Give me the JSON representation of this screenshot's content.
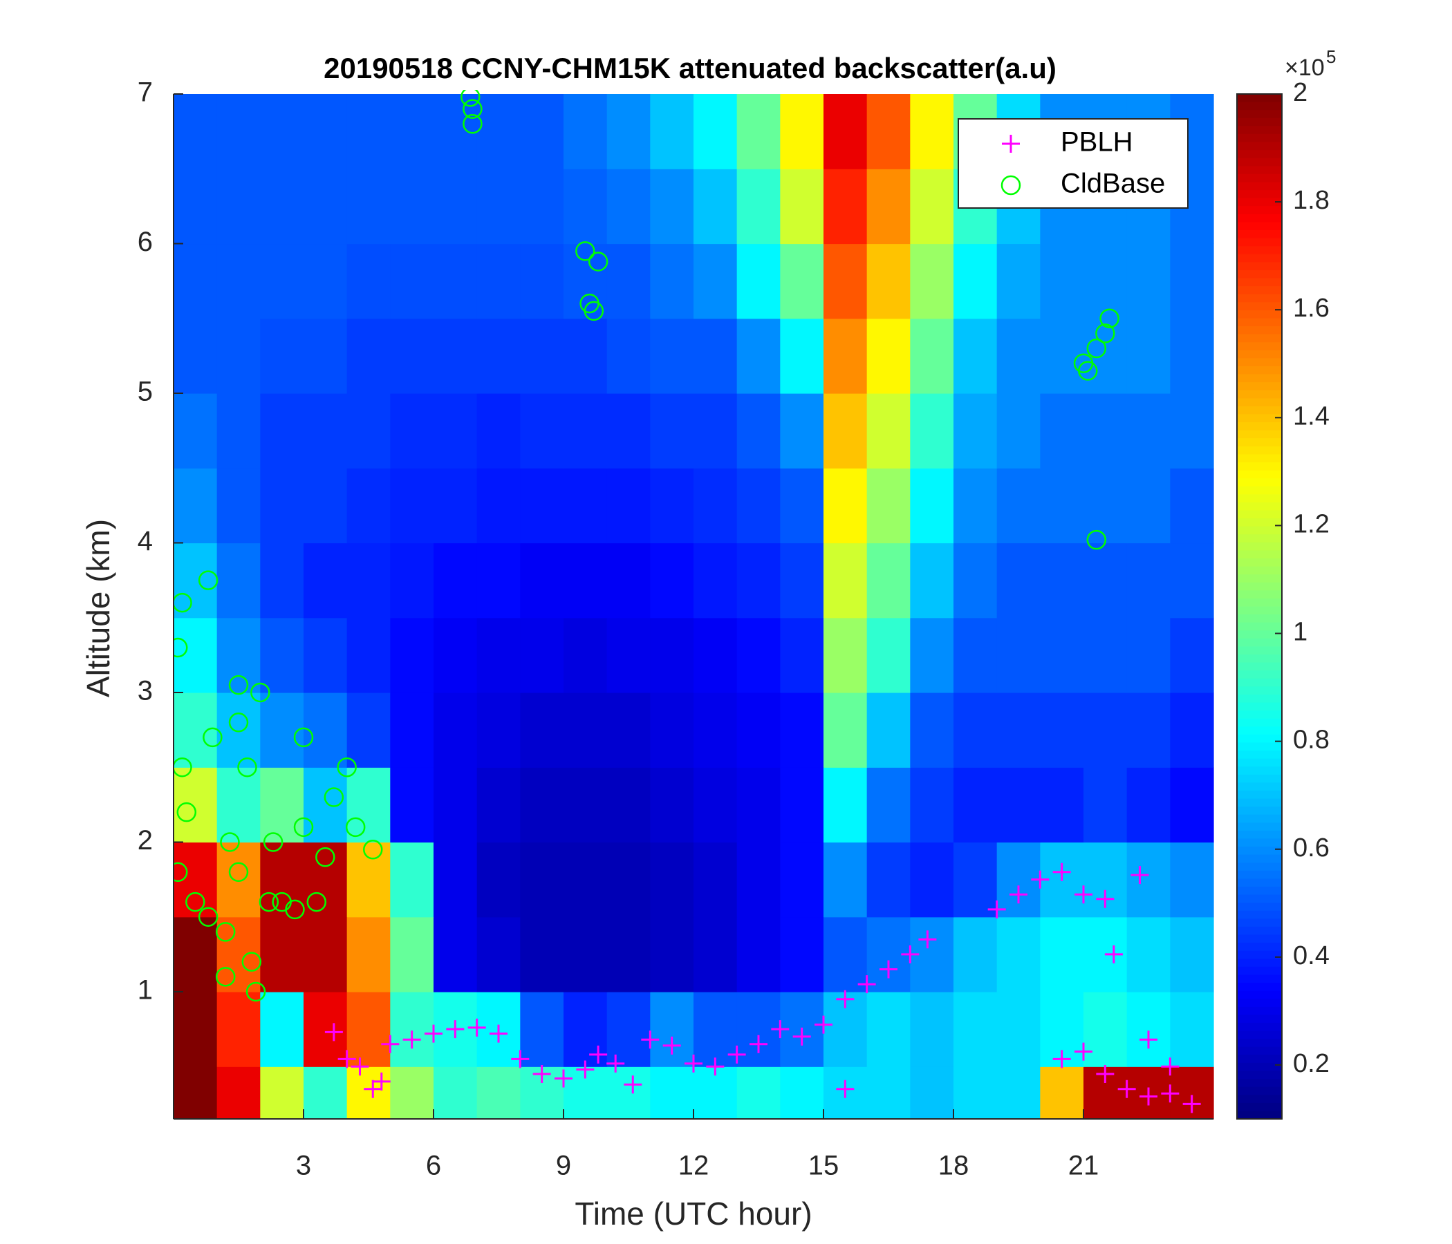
{
  "chart_data": {
    "type": "heatmap",
    "title": "20190518 CCNY-CHM15K attenuated backscatter(a.u)",
    "xlabel": "Time (UTC hour)",
    "ylabel": "Altitude (km)",
    "colormap": "jet",
    "x_edges": [
      0,
      1,
      2,
      3,
      4,
      5,
      6,
      7,
      8,
      9,
      10,
      11,
      12,
      13,
      14,
      15,
      16,
      17,
      18,
      19,
      20,
      21,
      22,
      23,
      24
    ],
    "y_edges": [
      0.15,
      0.5,
      1.0,
      1.5,
      2.0,
      2.5,
      3.0,
      3.5,
      4.0,
      4.5,
      5.0,
      5.5,
      6.0,
      6.5,
      7.0
    ],
    "z": [
      [
        2,
        1.8,
        1.2,
        0.9,
        1.3,
        1.1,
        0.9,
        0.95,
        0.9,
        0.85,
        0.85,
        0.8,
        0.8,
        0.85,
        0.8,
        0.75,
        0.75,
        0.7,
        0.75,
        0.75,
        1.4,
        1.9,
        1.9,
        1.9
      ],
      [
        2,
        1.7,
        0.8,
        1.8,
        1.6,
        0.9,
        0.85,
        0.8,
        0.5,
        0.4,
        0.45,
        0.6,
        0.5,
        0.5,
        0.55,
        0.7,
        0.75,
        0.7,
        0.75,
        0.75,
        0.8,
        0.85,
        0.8,
        0.75
      ],
      [
        2,
        1.6,
        1.9,
        1.9,
        1.5,
        1.0,
        0.3,
        0.25,
        0.2,
        0.2,
        0.2,
        0.22,
        0.25,
        0.3,
        0.35,
        0.5,
        0.55,
        0.6,
        0.7,
        0.75,
        0.8,
        0.8,
        0.75,
        0.7
      ],
      [
        1.8,
        1.5,
        1.9,
        1.9,
        1.4,
        0.9,
        0.3,
        0.22,
        0.2,
        0.2,
        0.2,
        0.22,
        0.25,
        0.3,
        0.35,
        0.6,
        0.45,
        0.4,
        0.45,
        0.6,
        0.7,
        0.7,
        0.65,
        0.6
      ],
      [
        1.2,
        0.9,
        1.0,
        0.7,
        0.9,
        0.35,
        0.3,
        0.25,
        0.22,
        0.22,
        0.22,
        0.25,
        0.28,
        0.3,
        0.35,
        0.8,
        0.55,
        0.45,
        0.4,
        0.4,
        0.4,
        0.45,
        0.4,
        0.35
      ],
      [
        0.9,
        0.7,
        0.6,
        0.55,
        0.45,
        0.35,
        0.3,
        0.28,
        0.25,
        0.25,
        0.25,
        0.28,
        0.3,
        0.32,
        0.35,
        1.0,
        0.7,
        0.5,
        0.45,
        0.45,
        0.45,
        0.45,
        0.45,
        0.4
      ],
      [
        0.8,
        0.6,
        0.5,
        0.45,
        0.4,
        0.35,
        0.32,
        0.3,
        0.3,
        0.28,
        0.3,
        0.3,
        0.32,
        0.35,
        0.4,
        1.1,
        0.9,
        0.6,
        0.5,
        0.5,
        0.5,
        0.5,
        0.5,
        0.45
      ],
      [
        0.7,
        0.55,
        0.45,
        0.4,
        0.4,
        0.38,
        0.35,
        0.35,
        0.32,
        0.32,
        0.32,
        0.35,
        0.38,
        0.4,
        0.45,
        1.2,
        1.0,
        0.7,
        0.55,
        0.5,
        0.5,
        0.5,
        0.5,
        0.5
      ],
      [
        0.6,
        0.5,
        0.45,
        0.45,
        0.42,
        0.4,
        0.4,
        0.38,
        0.38,
        0.38,
        0.38,
        0.4,
        0.42,
        0.45,
        0.5,
        1.3,
        1.1,
        0.8,
        0.6,
        0.55,
        0.55,
        0.55,
        0.55,
        0.5
      ],
      [
        0.55,
        0.5,
        0.45,
        0.45,
        0.45,
        0.42,
        0.42,
        0.4,
        0.42,
        0.42,
        0.42,
        0.45,
        0.45,
        0.5,
        0.6,
        1.4,
        1.2,
        0.9,
        0.65,
        0.6,
        0.55,
        0.55,
        0.55,
        0.55
      ],
      [
        0.5,
        0.5,
        0.48,
        0.48,
        0.45,
        0.45,
        0.45,
        0.45,
        0.45,
        0.45,
        0.48,
        0.5,
        0.5,
        0.6,
        0.8,
        1.5,
        1.3,
        1.0,
        0.7,
        0.6,
        0.6,
        0.6,
        0.6,
        0.55
      ],
      [
        0.5,
        0.5,
        0.5,
        0.5,
        0.48,
        0.48,
        0.48,
        0.48,
        0.48,
        0.5,
        0.5,
        0.55,
        0.6,
        0.8,
        1.0,
        1.6,
        1.4,
        1.1,
        0.8,
        0.65,
        0.6,
        0.6,
        0.6,
        0.55
      ],
      [
        0.5,
        0.5,
        0.5,
        0.5,
        0.5,
        0.5,
        0.5,
        0.5,
        0.5,
        0.52,
        0.55,
        0.6,
        0.7,
        0.9,
        1.2,
        1.7,
        1.5,
        1.2,
        0.9,
        0.7,
        0.6,
        0.6,
        0.6,
        0.55
      ],
      [
        0.5,
        0.5,
        0.5,
        0.5,
        0.5,
        0.5,
        0.5,
        0.5,
        0.5,
        0.55,
        0.6,
        0.7,
        0.8,
        1.0,
        1.3,
        1.8,
        1.6,
        1.3,
        1.0,
        0.75,
        0.6,
        0.6,
        0.6,
        0.55
      ]
    ],
    "xlim": [
      0,
      24
    ],
    "ylim": [
      0.15,
      7
    ],
    "xticks": [
      3,
      6,
      9,
      12,
      15,
      18,
      21
    ],
    "yticks": [
      1,
      2,
      3,
      4,
      5,
      6,
      7
    ],
    "clim": [
      0.1,
      2
    ],
    "colorbar_ticks": [
      0.2,
      0.4,
      0.6,
      0.8,
      1,
      1.2,
      1.4,
      1.6,
      1.8,
      2
    ],
    "colorbar_multiplier": "×10",
    "colorbar_exponent": "5",
    "legend": "upper right",
    "series": [
      {
        "name": "PBLH",
        "marker": "plus",
        "color": "#ff00ff",
        "x": [
          3.7,
          4.0,
          4.3,
          4.6,
          4.8,
          5.0,
          5.5,
          6.0,
          6.5,
          7.0,
          7.5,
          8.0,
          8.5,
          9.0,
          9.5,
          9.8,
          10.2,
          10.6,
          11.0,
          11.5,
          12.0,
          12.5,
          13.0,
          13.5,
          14.0,
          14.5,
          15.0,
          15.5,
          16.0,
          16.5,
          17.0,
          17.4,
          19.0,
          19.5,
          20.0,
          20.5,
          21.0,
          21.5,
          22.3,
          20.5,
          21.0,
          21.5,
          22.0,
          22.5,
          23.0,
          23.5,
          22.5,
          23.0,
          15.5,
          21.7
        ],
        "y": [
          0.73,
          0.55,
          0.5,
          0.35,
          0.4,
          0.65,
          0.68,
          0.72,
          0.75,
          0.76,
          0.72,
          0.55,
          0.45,
          0.42,
          0.48,
          0.58,
          0.52,
          0.38,
          0.68,
          0.64,
          0.52,
          0.5,
          0.58,
          0.65,
          0.75,
          0.7,
          0.78,
          0.95,
          1.05,
          1.15,
          1.25,
          1.35,
          1.55,
          1.65,
          1.75,
          1.8,
          1.65,
          1.62,
          1.78,
          0.55,
          0.6,
          0.45,
          0.35,
          0.3,
          0.32,
          0.25,
          0.68,
          0.5,
          0.35,
          1.25
        ]
      },
      {
        "name": "CldBase",
        "marker": "circle",
        "color": "#00ff00",
        "x": [
          0.1,
          0.2,
          0.1,
          0.2,
          0.3,
          0.5,
          0.8,
          0.9,
          0.8,
          1.2,
          1.3,
          1.5,
          1.5,
          1.5,
          1.8,
          1.7,
          1.9,
          2.0,
          2.2,
          2.3,
          2.5,
          2.8,
          3.0,
          3.0,
          3.3,
          3.5,
          3.7,
          4.0,
          4.2,
          4.6,
          1.2,
          6.85,
          6.9,
          6.9,
          9.5,
          9.8,
          9.7,
          9.6,
          21.0,
          21.1,
          21.3,
          21.5,
          21.6,
          21.3
        ],
        "y": [
          1.8,
          2.5,
          3.3,
          3.6,
          2.2,
          1.6,
          1.5,
          2.7,
          3.75,
          1.4,
          2.0,
          1.8,
          2.8,
          3.05,
          1.2,
          2.5,
          1.0,
          3.0,
          1.6,
          2.0,
          1.6,
          1.55,
          2.7,
          2.1,
          1.6,
          1.9,
          2.3,
          2.5,
          2.1,
          1.95,
          1.1,
          6.98,
          6.8,
          6.9,
          5.95,
          5.88,
          5.55,
          5.6,
          5.2,
          5.15,
          5.3,
          5.4,
          5.5,
          4.02
        ]
      }
    ]
  }
}
